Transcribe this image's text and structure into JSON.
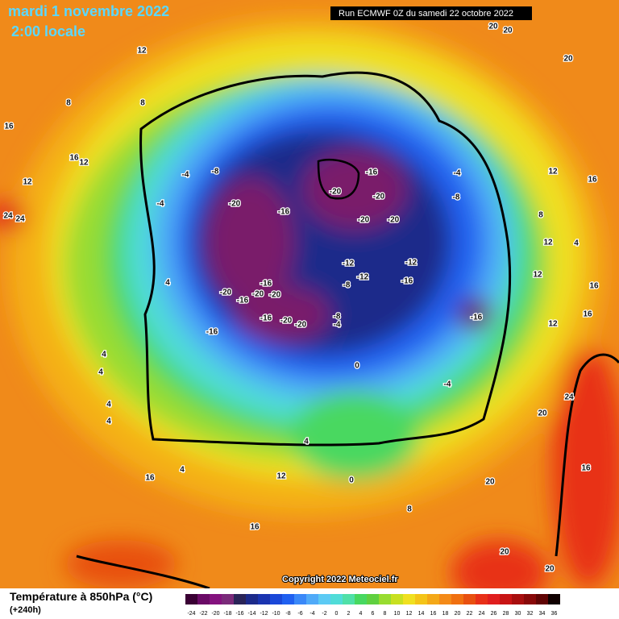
{
  "header": {
    "title": "mardi 1 novembre 2022",
    "time": "2:00 locale",
    "run": "Run ECMWF 0Z du samedi 22 octobre 2022"
  },
  "copyright": "Copyright 2022 Meteociel.fr",
  "legend": {
    "title": "Température à 850hPa (°C)",
    "lead": "(+240h)",
    "ticks": [
      -24,
      -22,
      -20,
      -18,
      -16,
      -14,
      -12,
      -10,
      -8,
      -6,
      -4,
      -2,
      0,
      2,
      4,
      6,
      8,
      10,
      12,
      14,
      16,
      18,
      20,
      22,
      24,
      26,
      28,
      30,
      32,
      34,
      36
    ],
    "colors": [
      "#3a0034",
      "#6a0a66",
      "#84127e",
      "#7a2a7a",
      "#2a2458",
      "#1c2a8a",
      "#1a34b0",
      "#1a48d8",
      "#2060f0",
      "#3a88f8",
      "#50aaf8",
      "#5ccaf4",
      "#50dcd8",
      "#50e0a8",
      "#48d860",
      "#60d040",
      "#98dc30",
      "#c8e020",
      "#f0e020",
      "#f4c418",
      "#f4a818",
      "#f48a18",
      "#f07010",
      "#e85010",
      "#e83018",
      "#e01e1e",
      "#c81414",
      "#a80e0e",
      "#880808",
      "#600404",
      "#100000"
    ]
  },
  "map_labels": [
    -20,
    -16,
    -20,
    -16,
    -20,
    -20,
    -20,
    -12,
    -12,
    -12,
    -8,
    -16,
    -16,
    -20,
    -16,
    -20,
    -20,
    -16,
    -16,
    -20,
    -20,
    -16,
    -8,
    -4,
    -8,
    -4,
    -4,
    -8,
    -4,
    -4,
    0,
    4,
    4,
    4,
    4,
    4,
    4,
    4,
    0,
    8,
    8,
    8,
    12,
    12,
    16,
    16,
    12,
    24,
    24,
    20,
    20,
    20,
    12,
    16,
    8,
    12,
    12,
    16,
    16,
    12,
    24,
    20,
    16,
    20,
    12,
    16,
    16,
    20,
    20,
    4
  ]
}
